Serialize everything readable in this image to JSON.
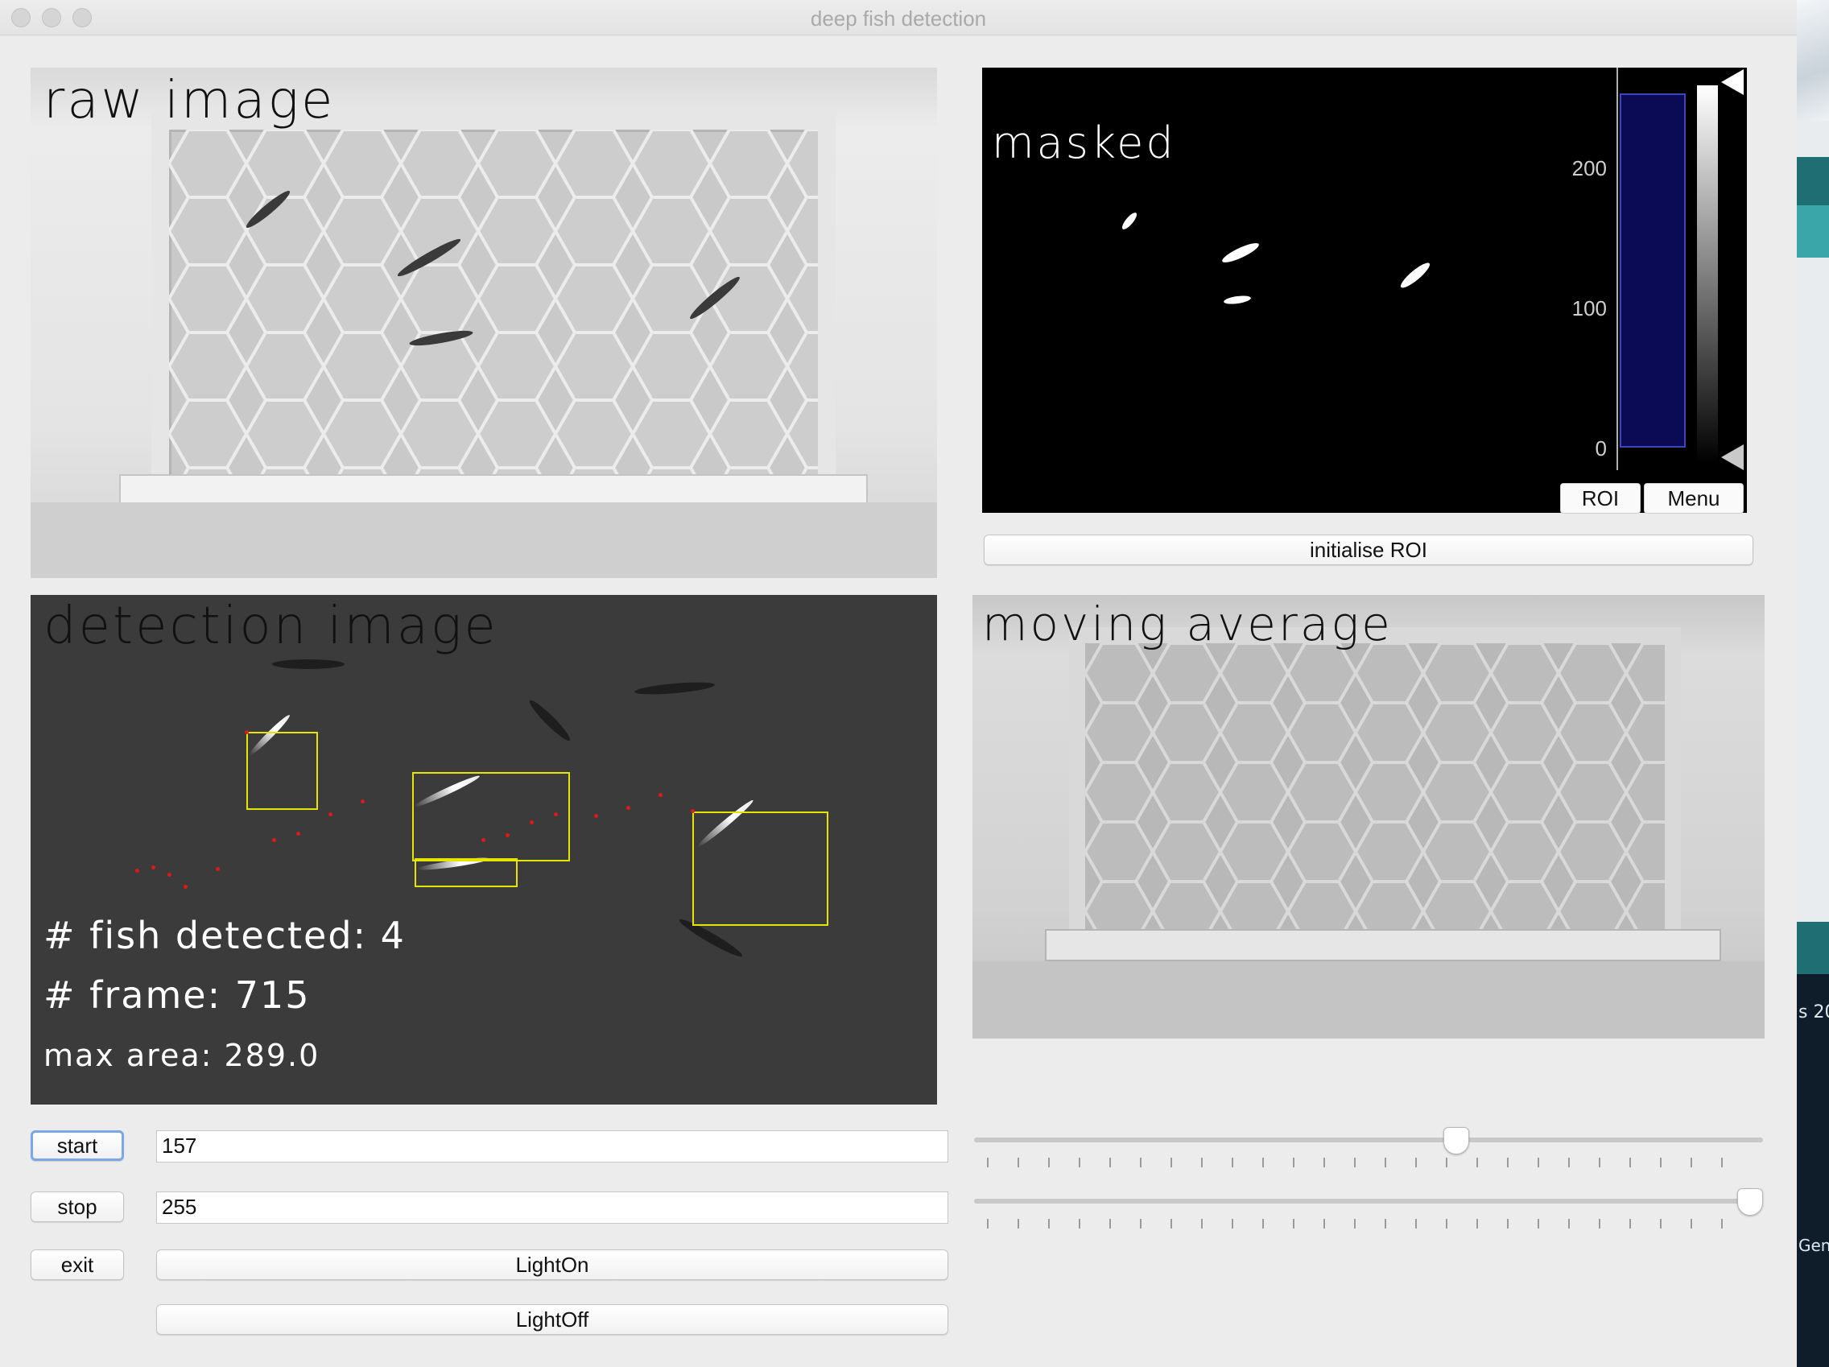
{
  "window": {
    "title": "deep fish detection"
  },
  "panels": {
    "raw": {
      "label": "raw image"
    },
    "masked": {
      "label": "masked"
    },
    "detection": {
      "label": "detection image"
    },
    "moving_average": {
      "label": "moving average"
    }
  },
  "histogram": {
    "ticks": [
      "200",
      "100",
      "0"
    ],
    "roi_button": "ROI",
    "menu_button": "Menu"
  },
  "detection_info": {
    "fish_detected": "# fish detected: 4",
    "frame": "# frame: 715",
    "max_area": "max area: 289.0"
  },
  "controls": {
    "initialise_roi": "initialise ROI",
    "start_label": "start",
    "start_value": "157",
    "stop_label": "stop",
    "stop_value": "255",
    "exit_label": "exit",
    "light_on": "LightOn",
    "light_off": "LightOff"
  },
  "sliders": [
    {
      "name": "start-slider",
      "fraction": 0.615
    },
    {
      "name": "stop-slider",
      "fraction": 1.0
    }
  ],
  "desktop": {
    "text_a": "s 20",
    "text_b": "Genu"
  }
}
